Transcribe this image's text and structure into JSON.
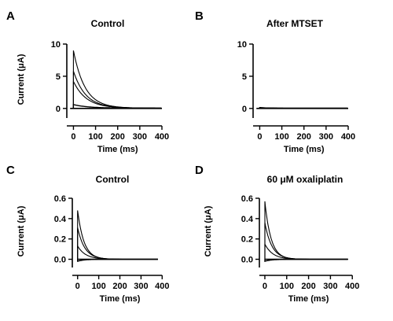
{
  "chart_data": [
    {
      "type": "line",
      "panel_label": "A",
      "title": "Control",
      "xlabel": "Time (ms)",
      "ylabel": "Current (μA)",
      "xlim": [
        -30,
        400
      ],
      "ylim": [
        -1,
        10
      ],
      "xticks": [
        0,
        100,
        200,
        300,
        400
      ],
      "yticks": [
        0,
        5,
        10
      ],
      "x_start": -15,
      "series": [
        {
          "peak": 9.0,
          "tau": 52,
          "baseline": 0.05
        },
        {
          "peak": 5.8,
          "tau": 55,
          "baseline": 0.05
        },
        {
          "peak": 4.2,
          "tau": 58,
          "baseline": 0.05
        },
        {
          "peak": 0.6,
          "tau": 65,
          "baseline": 0.05
        }
      ]
    },
    {
      "type": "line",
      "panel_label": "B",
      "title": "After MTSET",
      "xlabel": "Time (ms)",
      "ylabel": "",
      "xlim": [
        -30,
        400
      ],
      "ylim": [
        -1,
        10
      ],
      "xticks": [
        0,
        100,
        200,
        300,
        400
      ],
      "yticks": [
        0,
        5,
        10
      ],
      "x_start": -15,
      "series": [
        {
          "peak": 0.15,
          "tau": 40,
          "baseline": 0.05
        },
        {
          "peak": 0.1,
          "tau": 40,
          "baseline": 0.05
        }
      ]
    },
    {
      "type": "line",
      "panel_label": "C",
      "title": "Control",
      "xlabel": "Time (ms)",
      "ylabel": "Current (μA)",
      "xlim": [
        -25,
        410
      ],
      "ylim": [
        -0.05,
        0.6
      ],
      "xticks": [
        0,
        100,
        200,
        300,
        400
      ],
      "yticks": [
        0.0,
        0.2,
        0.4,
        0.6
      ],
      "ytick_labels": [
        "0.0",
        "0.2",
        "0.4",
        "0.6"
      ],
      "x_start": 0,
      "x_end": 380,
      "series": [
        {
          "peak": 0.48,
          "tau": 30,
          "baseline": 0.0
        },
        {
          "peak": 0.31,
          "tau": 34,
          "baseline": 0.0
        },
        {
          "peak": 0.13,
          "tau": 38,
          "baseline": 0.0
        },
        {
          "peak": -0.02,
          "tau": 30,
          "baseline": 0.0
        }
      ]
    },
    {
      "type": "line",
      "panel_label": "D",
      "title": "60 μM oxaliplatin",
      "xlabel": "Time (ms)",
      "ylabel": "Current (μA)",
      "xlim": [
        -25,
        410
      ],
      "ylim": [
        -0.05,
        0.6
      ],
      "xticks": [
        0,
        100,
        200,
        300,
        400
      ],
      "yticks": [
        0.0,
        0.2,
        0.4,
        0.6
      ],
      "ytick_labels": [
        "0.0",
        "0.2",
        "0.4",
        "0.6"
      ],
      "x_start": 0,
      "x_end": 380,
      "series": [
        {
          "peak": 0.57,
          "tau": 28,
          "baseline": 0.0
        },
        {
          "peak": 0.36,
          "tau": 32,
          "baseline": 0.0
        },
        {
          "peak": 0.15,
          "tau": 36,
          "baseline": 0.0
        },
        {
          "peak": -0.02,
          "tau": 30,
          "baseline": 0.0
        }
      ]
    }
  ]
}
